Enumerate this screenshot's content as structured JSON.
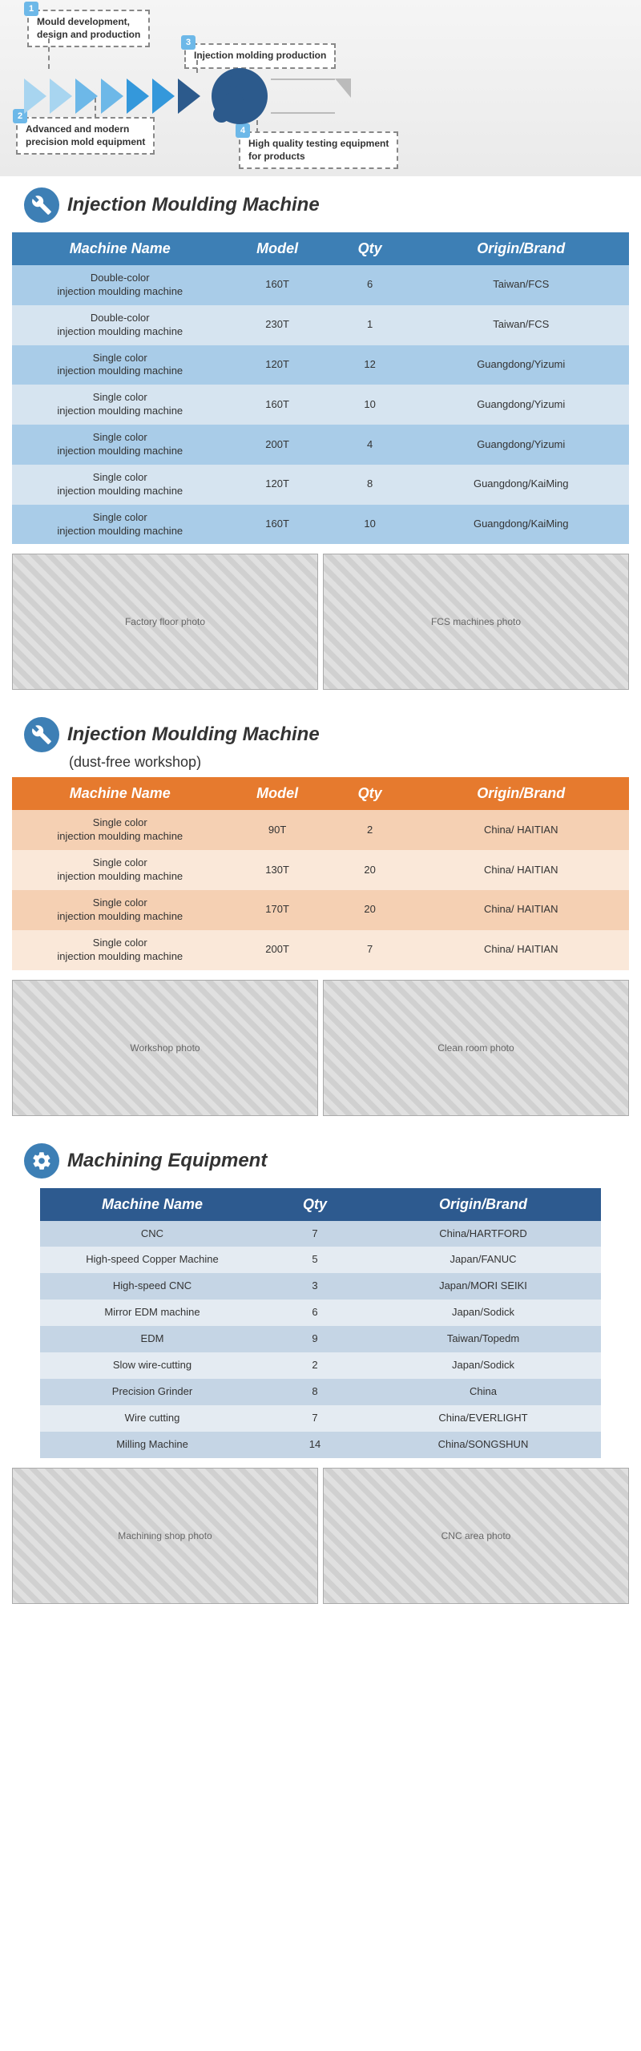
{
  "process": {
    "steps": [
      {
        "num": "1",
        "text": "Mould development,\ndesign and production"
      },
      {
        "num": "2",
        "text": "Advanced and modern\nprecision mold equipment"
      },
      {
        "num": "3",
        "text": "Injection molding production"
      },
      {
        "num": "4",
        "text": "High quality testing equipment\nfor products"
      }
    ]
  },
  "section1": {
    "title": "Injection Moulding Machine",
    "icon_bg": "#3d7fb5",
    "header_bg": "#3d7fb5",
    "header_color": "#ffffff",
    "row_even": "#a9cce8",
    "row_odd": "#d6e4f0",
    "columns": [
      "Machine Name",
      "Model",
      "Qty",
      "Origin/Brand"
    ],
    "rows": [
      [
        "Double-color\ninjection moulding machine",
        "160T",
        "6",
        "Taiwan/FCS"
      ],
      [
        "Double-color\ninjection moulding machine",
        "230T",
        "1",
        "Taiwan/FCS"
      ],
      [
        "Single color\ninjection moulding machine",
        "120T",
        "12",
        "Guangdong/Yizumi"
      ],
      [
        "Single color\ninjection moulding machine",
        "160T",
        "10",
        "Guangdong/Yizumi"
      ],
      [
        "Single color\ninjection moulding machine",
        "200T",
        "4",
        "Guangdong/Yizumi"
      ],
      [
        "Single color\ninjection moulding machine",
        "120T",
        "8",
        "Guangdong/KaiMing"
      ],
      [
        "Single color\ninjection moulding machine",
        "160T",
        "10",
        "Guangdong/KaiMing"
      ]
    ]
  },
  "section2": {
    "title": "Injection Moulding Machine",
    "subtitle": "(dust-free workshop)",
    "icon_bg": "#3d7fb5",
    "header_bg": "#e67a2e",
    "header_color": "#ffffff",
    "row_even": "#f5d0b3",
    "row_odd": "#fae8d9",
    "columns": [
      "Machine Name",
      "Model",
      "Qty",
      "Origin/Brand"
    ],
    "rows": [
      [
        "Single color\ninjection moulding machine",
        "90T",
        "2",
        "China/ HAITIAN"
      ],
      [
        "Single color\ninjection moulding machine",
        "130T",
        "20",
        "China/ HAITIAN"
      ],
      [
        "Single color\ninjection moulding machine",
        "170T",
        "20",
        "China/ HAITIAN"
      ],
      [
        "Single color\ninjection moulding machine",
        "200T",
        "7",
        "China/ HAITIAN"
      ]
    ]
  },
  "section3": {
    "title": "Machining Equipment",
    "icon_bg": "#3d7fb5",
    "header_bg": "#2d5a8f",
    "header_color": "#ffffff",
    "row_even": "#c5d5e5",
    "row_odd": "#e4ebf2",
    "columns": [
      "Machine Name",
      "Qty",
      "Origin/Brand"
    ],
    "col_widths": [
      "40%",
      "18%",
      "42%"
    ],
    "rows": [
      [
        "CNC",
        "7",
        "China/HARTFORD"
      ],
      [
        "High-speed Copper Machine",
        "5",
        "Japan/FANUC"
      ],
      [
        "High-speed CNC",
        "3",
        "Japan/MORI SEIKI"
      ],
      [
        "Mirror EDM machine",
        "6",
        "Japan/Sodick"
      ],
      [
        "EDM",
        "9",
        "Taiwan/Topedm"
      ],
      [
        "Slow wire-cutting",
        "2",
        "Japan/Sodick"
      ],
      [
        "Precision Grinder",
        "8",
        "China"
      ],
      [
        "Wire cutting",
        "7",
        "China/EVERLIGHT"
      ],
      [
        "Milling Machine",
        "14",
        "China/SONGSHUN"
      ]
    ]
  },
  "photos": {
    "row1": [
      "Factory floor photo",
      "FCS machines photo"
    ],
    "row2": [
      "Workshop photo",
      "Clean room photo"
    ],
    "row3": [
      "Machining shop photo",
      "CNC area photo"
    ]
  }
}
